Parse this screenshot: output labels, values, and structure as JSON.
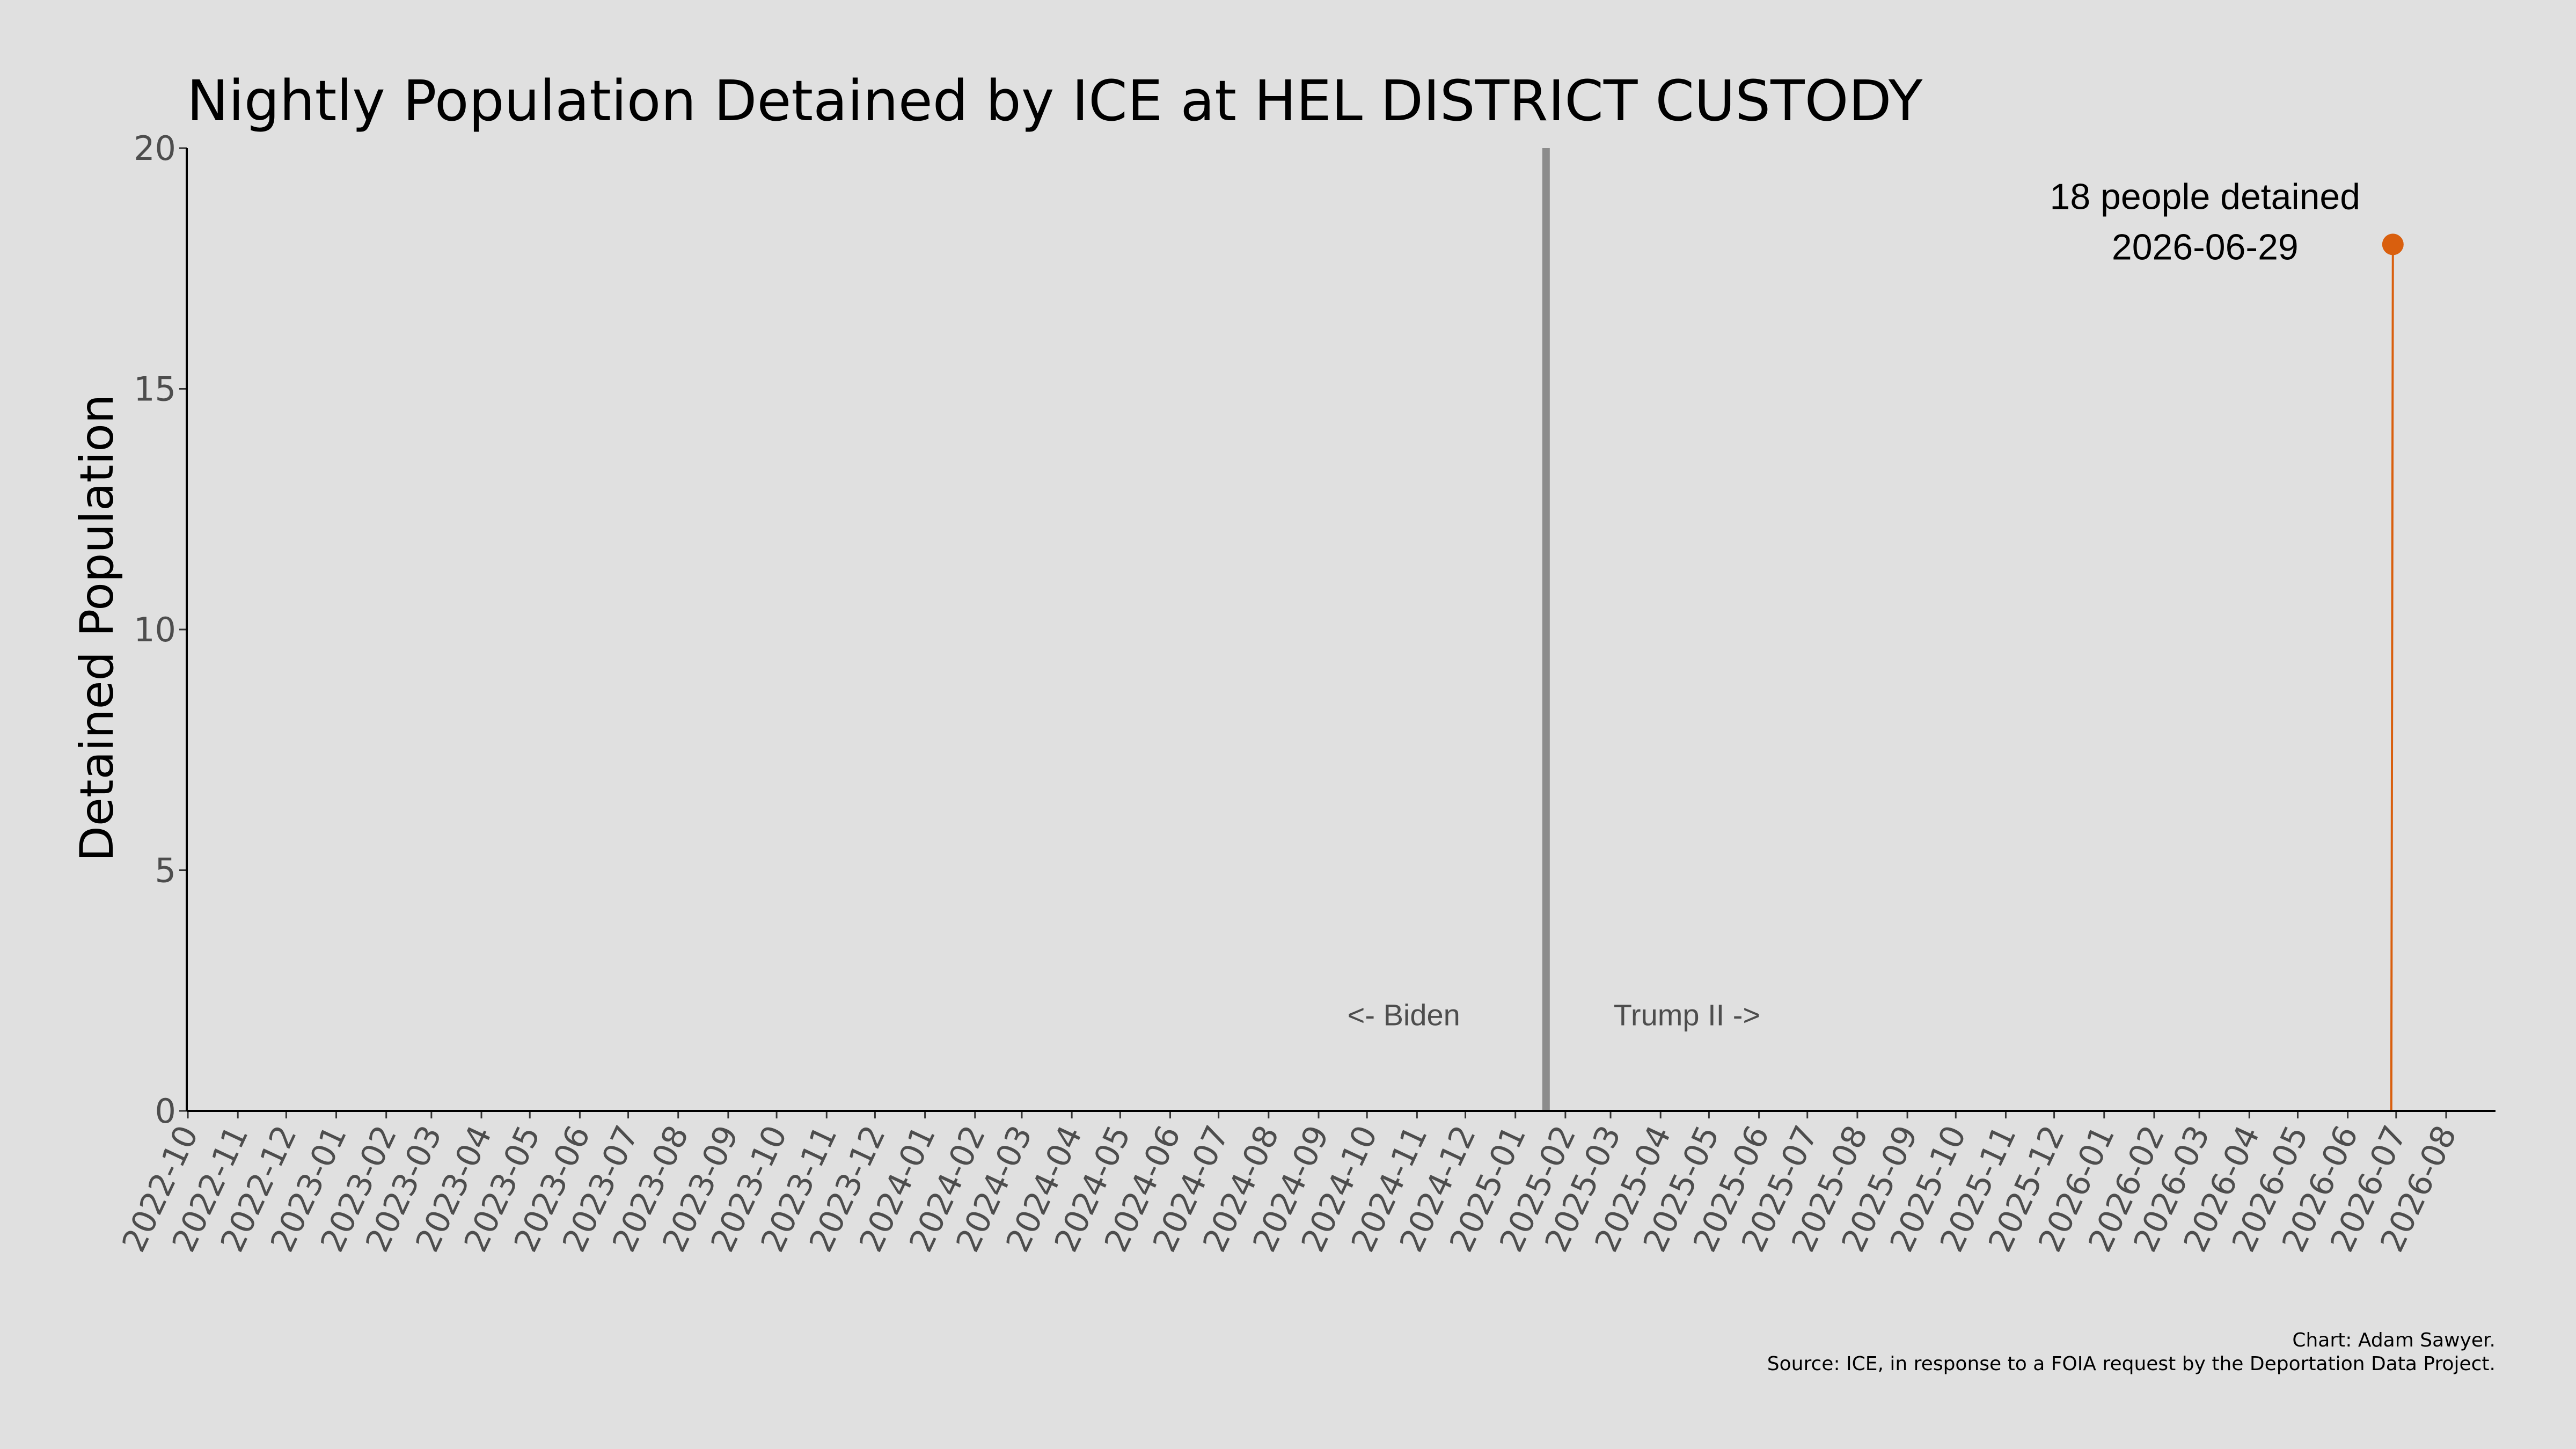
{
  "chart_data": {
    "type": "line",
    "title": "Nightly Population Detained by ICE at HEL DISTRICT CUSTODY",
    "ylabel": "Detained Population",
    "xlabel": "",
    "ylim": [
      0,
      20
    ],
    "yticks": [
      "0",
      "5",
      "10",
      "15",
      "20"
    ],
    "x_range": [
      "2022-10",
      "2026-08"
    ],
    "xticks": [
      "2022-10",
      "2022-11",
      "2022-12",
      "2023-01",
      "2023-02",
      "2023-03",
      "2023-04",
      "2023-05",
      "2023-06",
      "2023-07",
      "2023-08",
      "2023-09",
      "2023-10",
      "2023-11",
      "2023-12",
      "2024-01",
      "2024-02",
      "2024-03",
      "2024-04",
      "2024-05",
      "2024-06",
      "2024-07",
      "2024-08",
      "2024-09",
      "2024-10",
      "2024-11",
      "2024-12",
      "2025-01",
      "2025-02",
      "2025-03",
      "2025-04",
      "2025-05",
      "2025-06",
      "2025-07",
      "2025-08",
      "2025-09",
      "2025-10",
      "2025-11",
      "2025-12",
      "2026-01",
      "2026-02",
      "2026-03",
      "2026-04",
      "2026-05",
      "2026-06",
      "2026-07",
      "2026-08"
    ],
    "grid": false,
    "series": [
      {
        "color": "#d95f0e",
        "points": [
          {
            "x": "2026-06-28",
            "y": 0
          },
          {
            "x": "2026-06-29",
            "y": 18
          }
        ]
      }
    ],
    "highlight": {
      "x": "2026-06-29",
      "y": 18
    },
    "vline": {
      "x": "2025-01-20",
      "color": "#8c8c8c"
    },
    "era_labels": {
      "left": "<- Biden",
      "right": "Trump II ->"
    },
    "annotation": {
      "line1": "18 people detained",
      "line2": "2026-06-29"
    },
    "caption": {
      "line1": "Chart: Adam Sawyer.",
      "line2": "Source: ICE, in response to a FOIA request by the Deportation Data Project."
    }
  }
}
